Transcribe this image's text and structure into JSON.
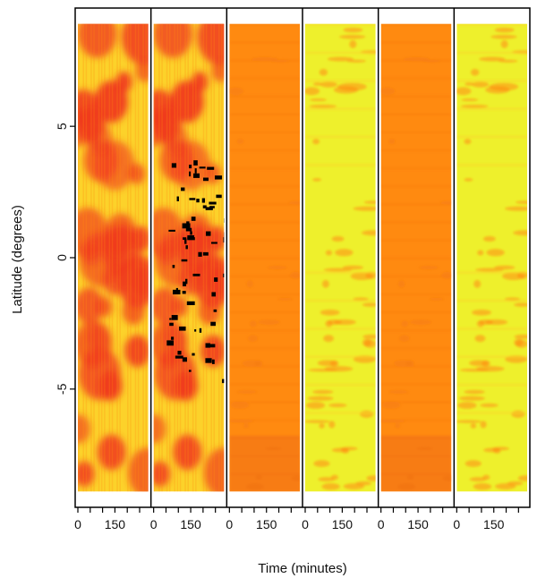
{
  "chart_data": {
    "type": "heatmap",
    "title": "",
    "xlabel": "Time (minutes)",
    "ylabel": "Latitude (degrees)",
    "ylim": [
      -9.5,
      9.5
    ],
    "data_lat_range": [
      -8.9,
      8.9
    ],
    "y_ticks": [
      {
        "value": 5,
        "label": "5"
      },
      {
        "value": 0,
        "label": "0"
      },
      {
        "value": -5,
        "label": "-5"
      }
    ],
    "panel_xlim": [
      0,
      285
    ],
    "panel_x_ticks_labeled": [
      {
        "value": 0,
        "label": "0"
      },
      {
        "value": 150,
        "label": "150"
      }
    ],
    "panel_x_ticks_all": [
      0,
      50,
      100,
      150,
      200,
      250
    ],
    "grid": false,
    "legend": "none",
    "panels": [
      {
        "id": "p1",
        "palette": "red-yellow",
        "texture": "patchy",
        "missing_pixels": false
      },
      {
        "id": "p2",
        "palette": "red-yellow",
        "texture": "patchy",
        "missing_pixels": true
      },
      {
        "id": "p3",
        "palette": "orange",
        "texture": "smooth",
        "missing_pixels": false
      },
      {
        "id": "p4",
        "palette": "yellow",
        "texture": "speckled",
        "missing_pixels": false
      },
      {
        "id": "p5",
        "palette": "orange",
        "texture": "smooth",
        "missing_pixels": false
      },
      {
        "id": "p6",
        "palette": "yellow",
        "texture": "speckled",
        "missing_pixels": false
      }
    ],
    "colors": {
      "red": "#f03a1e",
      "orange": "#ff8a10",
      "yellow": "#fcd22a",
      "light_yellow": "#eef02c",
      "missing": "#000000"
    }
  }
}
